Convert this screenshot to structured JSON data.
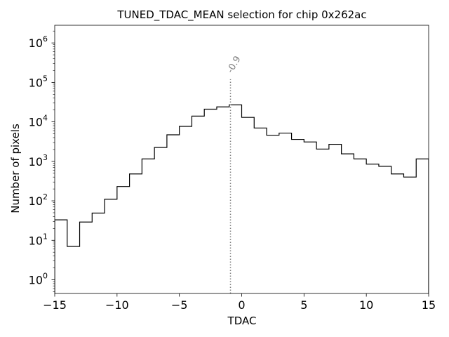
{
  "chart_data": {
    "type": "step-histogram",
    "title": "TUNED_TDAC_MEAN selection for chip 0x262ac",
    "xlabel": "TDAC",
    "ylabel": "Number of pixels",
    "yscale": "log",
    "xlim": [
      -15,
      15
    ],
    "ylim": [
      0.45,
      2800000
    ],
    "bin_edges": [
      -15,
      -14,
      -13,
      -12,
      -11,
      -10,
      -9,
      -8,
      -7,
      -6,
      -5,
      -4,
      -3,
      -2,
      -1,
      0,
      1,
      2,
      3,
      4,
      5,
      6,
      7,
      8,
      9,
      10,
      11,
      12,
      13,
      14,
      15
    ],
    "counts": [
      33,
      7,
      29,
      49,
      110,
      230,
      480,
      1150,
      2250,
      4700,
      7700,
      14000,
      21000,
      24000,
      27000,
      13000,
      7000,
      4600,
      5200,
      3600,
      3100,
      2050,
      2700,
      1550,
      1150,
      850,
      750,
      480,
      400,
      1150
    ],
    "x_ticks": [
      {
        "value": -15,
        "label": "−15"
      },
      {
        "value": -10,
        "label": "−10"
      },
      {
        "value": -5,
        "label": "−5"
      },
      {
        "value": 0,
        "label": "0"
      },
      {
        "value": 5,
        "label": "5"
      },
      {
        "value": 10,
        "label": "10"
      },
      {
        "value": 15,
        "label": "15"
      }
    ],
    "y_ticks": [
      {
        "value": 1,
        "base": "10",
        "exp": "0"
      },
      {
        "value": 10,
        "base": "10",
        "exp": "1"
      },
      {
        "value": 100,
        "base": "10",
        "exp": "2"
      },
      {
        "value": 1000,
        "base": "10",
        "exp": "3"
      },
      {
        "value": 10000,
        "base": "10",
        "exp": "4"
      },
      {
        "value": 100000,
        "base": "10",
        "exp": "5"
      },
      {
        "value": 1000000,
        "base": "10",
        "exp": "6"
      }
    ],
    "mean_line": {
      "value": -0.9,
      "label": "-0.9",
      "ymax": 120000,
      "color": "#808080"
    },
    "line_color": "#000000"
  }
}
